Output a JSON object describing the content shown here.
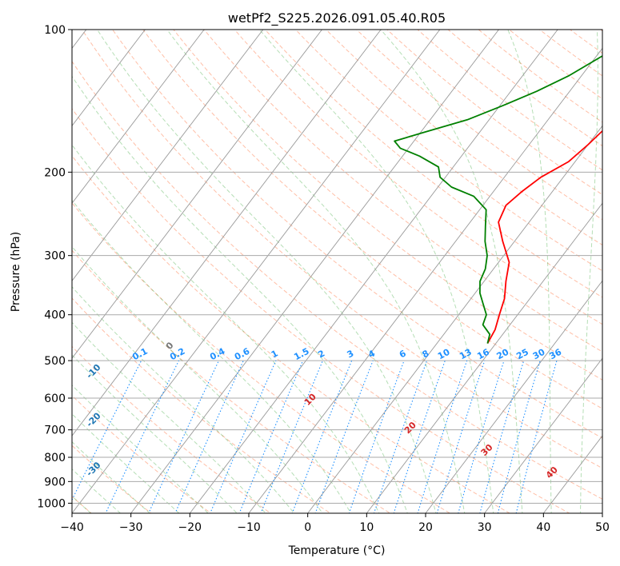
{
  "chart_data": {
    "type": "line",
    "subtype": "skew-t log-p",
    "title": "wetPf2_S225.2026.091.05.40.R05",
    "xlabel": "Temperature (°C)",
    "ylabel": "Pressure (hPa)",
    "xlim": [
      -40,
      50
    ],
    "ylim": [
      1050,
      100
    ],
    "x_ticks": [
      -40,
      -30,
      -20,
      -10,
      0,
      10,
      20,
      30,
      40,
      50
    ],
    "y_ticks": [
      100,
      200,
      300,
      400,
      500,
      600,
      700,
      800,
      900,
      1000
    ],
    "series": [
      {
        "name": "Temperature",
        "color": "#ff0000",
        "pressure": [
          460,
          430,
          400,
          370,
          340,
          310,
          280,
          255,
          235,
          220,
          205,
          190,
          175,
          160,
          145,
          130,
          118,
          108,
          100
        ],
        "values": [
          8.6,
          8.1,
          6.9,
          5.7,
          3.7,
          1.8,
          -2.0,
          -5.2,
          -6.1,
          -5.2,
          -3.8,
          -1.1,
          0.0,
          0.9,
          1.0,
          0.9,
          1.2,
          3.4,
          6.1
        ]
      },
      {
        "name": "Dewpoint",
        "color": "#008000",
        "pressure": [
          460,
          440,
          420,
          400,
          380,
          360,
          340,
          320,
          300,
          280,
          260,
          240,
          225,
          215,
          205,
          195,
          185,
          178,
          172,
          165,
          155,
          145,
          135,
          125,
          115,
          108,
          100
        ],
        "values": [
          8.6,
          7.8,
          5.4,
          4.7,
          2.8,
          0.8,
          -0.7,
          -1.4,
          -2.8,
          -5.0,
          -6.9,
          -8.9,
          -12.7,
          -17.7,
          -20.9,
          -22.5,
          -27.1,
          -31.4,
          -33.3,
          -29.5,
          -23.7,
          -19.6,
          -15.6,
          -12.1,
          -9.4,
          -7.3,
          -4.5
        ]
      }
    ],
    "dry_adiabats": [
      -100,
      -90,
      -80,
      -70,
      -60,
      -50,
      -40,
      -30,
      -20,
      -10
    ],
    "moist_adiabats": [
      0,
      10,
      20,
      30,
      40
    ],
    "mixing_ratio_labels": [
      "0.1",
      "0.2",
      "0.4",
      "0.6",
      "1",
      "1.5",
      "2",
      "3",
      "4",
      "6",
      "8",
      "10",
      "13",
      "16",
      "20",
      "25",
      "30",
      "36"
    ],
    "mixing_ratio_values": [
      0.1,
      0.2,
      0.4,
      0.6,
      1,
      1.5,
      2,
      3,
      4,
      6,
      8,
      10,
      13,
      16,
      20,
      25,
      30,
      36
    ],
    "mixing_ratio_label_pressure": 500,
    "grid": true
  }
}
